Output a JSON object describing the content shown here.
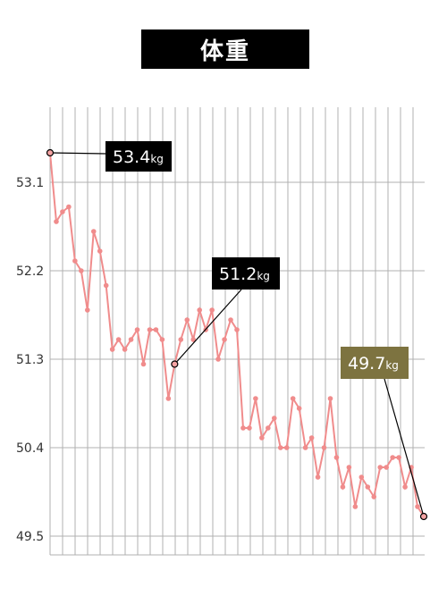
{
  "chart_data": {
    "type": "line",
    "title": "体重",
    "xlabel": "",
    "ylabel": "",
    "ylim": [
      49.4,
      54.0
    ],
    "yticks": [
      "53.1",
      "52.2",
      "51.3",
      "50.4",
      "49.5"
    ],
    "grid": true,
    "series": [
      {
        "color": "#f08c8c",
        "values": [
          53.4,
          52.7,
          52.8,
          52.85,
          52.3,
          52.2,
          51.8,
          52.6,
          52.4,
          52.05,
          51.4,
          51.5,
          51.4,
          51.5,
          51.6,
          51.25,
          51.6,
          51.6,
          51.5,
          50.9,
          51.25,
          51.5,
          51.7,
          51.5,
          51.8,
          51.6,
          51.8,
          51.3,
          51.5,
          51.7,
          51.6,
          50.6,
          50.6,
          50.9,
          50.5,
          50.6,
          50.7,
          50.4,
          50.4,
          50.9,
          50.8,
          50.4,
          50.5,
          50.1,
          50.4,
          50.9,
          50.3,
          50.0,
          50.2,
          49.8,
          50.1,
          50.0,
          49.9,
          50.2,
          50.2,
          50.3,
          50.3,
          50.0,
          50.2,
          49.8,
          49.7
        ]
      }
    ],
    "callouts": [
      {
        "index": 0,
        "value": "53.4",
        "unit": "kg",
        "bg": "#000000"
      },
      {
        "index": 20,
        "value": "51.2",
        "unit": "kg",
        "bg": "#000000"
      },
      {
        "index": 60,
        "value": "49.7",
        "unit": "kg",
        "bg": "#7d7340"
      }
    ]
  }
}
